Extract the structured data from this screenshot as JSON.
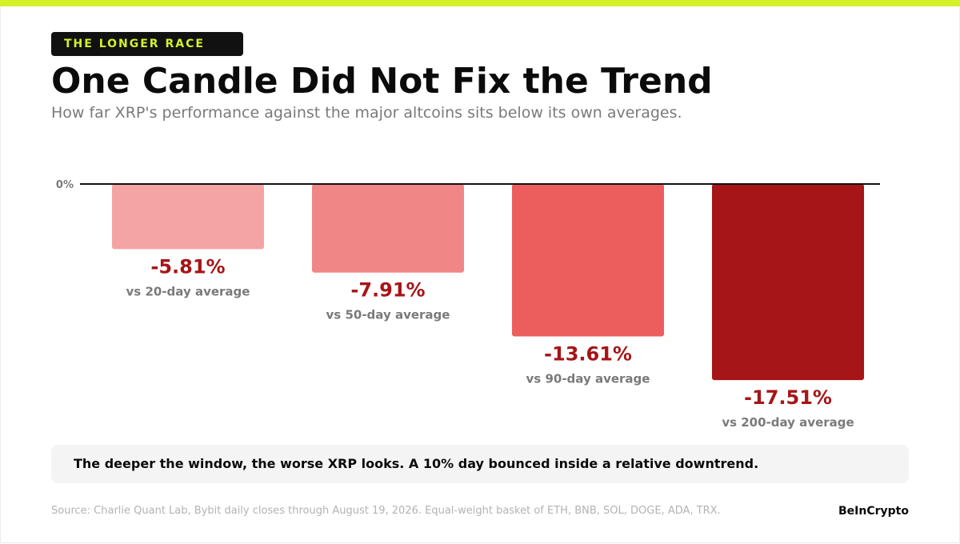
{
  "colors": {
    "accent": "#d4f02b",
    "value_text": "#a61517",
    "bar_fills": [
      "#f4a4a4",
      "#f08686",
      "#ec5d5d",
      "#a61517"
    ]
  },
  "header": {
    "kicker": "THE LONGER RACE",
    "title": "One Candle Did Not Fix the Trend",
    "subtitle": "How far XRP's performance against the major altcoins sits below its own averages."
  },
  "chart_data": {
    "type": "bar",
    "title": "One Candle Did Not Fix the Trend",
    "subtitle": "How far XRP's performance against the major altcoins sits below its own averages.",
    "categories": [
      "vs 20-day average",
      "vs 50-day average",
      "vs 90-day average",
      "vs 200-day average"
    ],
    "values": [
      -5.81,
      -7.91,
      -13.61,
      -17.51
    ],
    "value_labels": [
      "-5.81%",
      "-7.91%",
      "-13.61%",
      "-17.51%"
    ],
    "baseline_label": "0%",
    "unit": "%",
    "ylim": [
      -25,
      0
    ],
    "grid": false,
    "legend": "none"
  },
  "note": "The deeper the window, the worse XRP looks. A 10% day bounced inside a relative downtrend.",
  "footer": {
    "source": "Source: Charlie Quant Lab, Bybit daily closes through August 19, 2026. Equal-weight basket of ETH, BNB, SOL, DOGE, ADA, TRX.",
    "brand": "BeInCrypto"
  }
}
